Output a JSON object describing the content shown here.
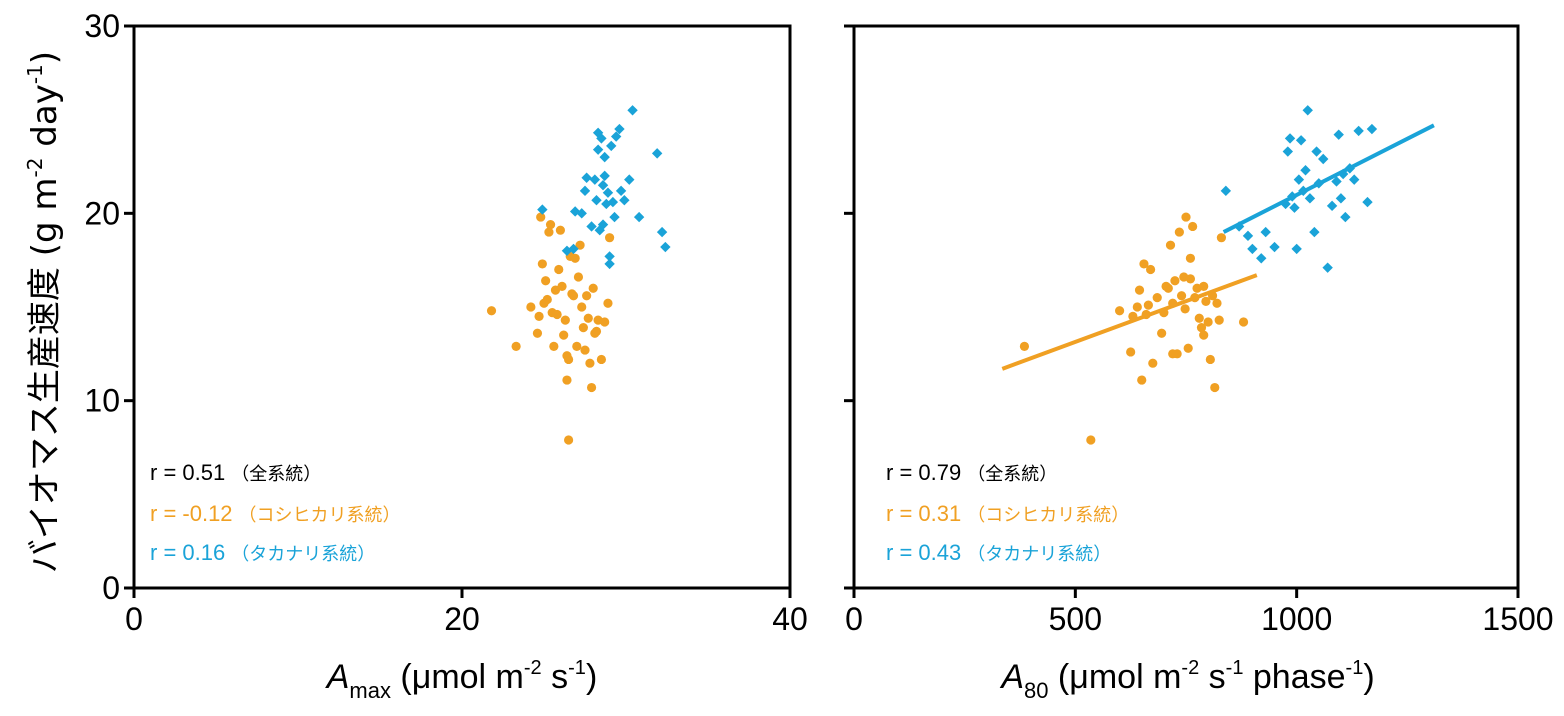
{
  "ylabel": {
    "main": "バイオマス生産速度 (g m",
    "sup1": "-2",
    "mid": " day",
    "sup2": "-1",
    "end": ")"
  },
  "colors": {
    "koshihikari": "#f0a023",
    "takanari": "#1aa3d8",
    "all": "#000000"
  },
  "chart_data": [
    {
      "type": "scatter",
      "xlabel": {
        "italic": "A",
        "sub": "max",
        "rest": " (μmol m",
        "sup1": "-2",
        "mid": " s",
        "sup2": "-1",
        "end": ")"
      },
      "xlim": [
        0,
        40
      ],
      "ylim": [
        0,
        30
      ],
      "xticks": [
        0,
        20,
        40
      ],
      "yticks": [
        0,
        10,
        20,
        30
      ],
      "annotations": [
        {
          "r": "r =  0.51",
          "label": "（全系統）",
          "color_key": "all"
        },
        {
          "r": "r = -0.12",
          "label": "（コシヒカリ系統）",
          "color_key": "koshihikari"
        },
        {
          "r": "r =  0.16",
          "label": "（タカナリ系統）",
          "color_key": "takanari"
        }
      ],
      "series": [
        {
          "color_key": "koshihikari",
          "marker": "circle",
          "points": [
            [
              21.8,
              14.8
            ],
            [
              23.3,
              12.9
            ],
            [
              24.2,
              15.0
            ],
            [
              24.6,
              13.6
            ],
            [
              24.7,
              14.5
            ],
            [
              24.8,
              19.8
            ],
            [
              24.9,
              17.3
            ],
            [
              25.0,
              15.2
            ],
            [
              25.1,
              16.4
            ],
            [
              25.2,
              15.4
            ],
            [
              25.3,
              19.0
            ],
            [
              25.4,
              19.4
            ],
            [
              25.5,
              14.7
            ],
            [
              25.6,
              12.9
            ],
            [
              25.7,
              15.9
            ],
            [
              25.8,
              14.6
            ],
            [
              25.9,
              17.0
            ],
            [
              26.0,
              19.1
            ],
            [
              26.1,
              16.1
            ],
            [
              26.2,
              13.5
            ],
            [
              26.3,
              14.3
            ],
            [
              26.4,
              12.4
            ],
            [
              26.4,
              11.1
            ],
            [
              26.5,
              12.2
            ],
            [
              26.5,
              7.9
            ],
            [
              26.6,
              17.7
            ],
            [
              26.7,
              15.7
            ],
            [
              26.8,
              15.6
            ],
            [
              26.9,
              17.6
            ],
            [
              27.0,
              12.9
            ],
            [
              27.1,
              16.6
            ],
            [
              27.2,
              18.3
            ],
            [
              27.3,
              15.0
            ],
            [
              27.4,
              13.9
            ],
            [
              27.5,
              12.7
            ],
            [
              27.6,
              15.6
            ],
            [
              27.7,
              14.4
            ],
            [
              27.8,
              12.0
            ],
            [
              27.9,
              10.7
            ],
            [
              28.0,
              16.0
            ],
            [
              28.1,
              13.6
            ],
            [
              28.2,
              13.7
            ],
            [
              28.3,
              14.3
            ],
            [
              28.5,
              12.2
            ],
            [
              28.7,
              14.2
            ],
            [
              28.9,
              15.2
            ],
            [
              29.0,
              18.7
            ]
          ]
        },
        {
          "color_key": "takanari",
          "marker": "diamond",
          "points": [
            [
              24.9,
              20.2
            ],
            [
              26.4,
              18.0
            ],
            [
              26.8,
              18.1
            ],
            [
              26.9,
              20.1
            ],
            [
              27.3,
              20.0
            ],
            [
              27.5,
              21.2
            ],
            [
              27.6,
              21.9
            ],
            [
              27.9,
              19.3
            ],
            [
              28.1,
              21.8
            ],
            [
              28.2,
              20.7
            ],
            [
              28.3,
              23.4
            ],
            [
              28.3,
              24.3
            ],
            [
              28.4,
              19.1
            ],
            [
              28.5,
              24.0
            ],
            [
              28.6,
              19.4
            ],
            [
              28.6,
              21.5
            ],
            [
              28.7,
              23.0
            ],
            [
              28.7,
              22.0
            ],
            [
              28.8,
              20.5
            ],
            [
              28.9,
              21.1
            ],
            [
              29.0,
              17.7
            ],
            [
              29.0,
              17.3
            ],
            [
              29.1,
              23.6
            ],
            [
              29.2,
              20.6
            ],
            [
              29.3,
              19.8
            ],
            [
              29.4,
              24.1
            ],
            [
              29.6,
              24.5
            ],
            [
              29.7,
              21.2
            ],
            [
              29.9,
              20.7
            ],
            [
              30.2,
              21.8
            ],
            [
              30.4,
              25.5
            ],
            [
              30.8,
              19.8
            ],
            [
              31.9,
              23.2
            ],
            [
              32.2,
              19.0
            ],
            [
              32.4,
              18.2
            ]
          ]
        }
      ]
    },
    {
      "type": "scatter",
      "xlabel": {
        "italic": "A",
        "sub": "80",
        "rest": " (μmol m",
        "sup1": "-2",
        "mid": " s",
        "sup2": "-1",
        "mid2": " phase",
        "sup3": "-1",
        "end": ")"
      },
      "xlim": [
        0,
        1500
      ],
      "ylim": [
        0,
        30
      ],
      "xticks": [
        0,
        500,
        1000,
        1500
      ],
      "yticks": [
        0,
        10,
        20,
        30
      ],
      "annotations": [
        {
          "r": "r =  0.79",
          "label": "（全系統）",
          "color_key": "all"
        },
        {
          "r": "r =  0.31",
          "label": "（コシヒカリ系統）",
          "color_key": "koshihikari"
        },
        {
          "r": "r =  0.43",
          "label": "（タカナリ系統）",
          "color_key": "takanari"
        }
      ],
      "fits": [
        {
          "color_key": "koshihikari",
          "x": [
            335,
            910
          ],
          "y": [
            11.7,
            16.7
          ]
        },
        {
          "color_key": "takanari",
          "x": [
            835,
            1310
          ],
          "y": [
            19.0,
            24.7
          ]
        }
      ],
      "series": [
        {
          "color_key": "koshihikari",
          "marker": "circle",
          "points": [
            [
              385,
              12.9
            ],
            [
              535,
              7.9
            ],
            [
              600,
              14.8
            ],
            [
              625,
              12.6
            ],
            [
              630,
              14.5
            ],
            [
              640,
              15.0
            ],
            [
              645,
              15.9
            ],
            [
              650,
              11.1
            ],
            [
              655,
              17.3
            ],
            [
              660,
              14.6
            ],
            [
              665,
              15.1
            ],
            [
              670,
              17.0
            ],
            [
              675,
              12.0
            ],
            [
              685,
              15.5
            ],
            [
              695,
              13.6
            ],
            [
              700,
              14.7
            ],
            [
              705,
              16.1
            ],
            [
              710,
              16.0
            ],
            [
              715,
              18.3
            ],
            [
              720,
              15.2
            ],
            [
              725,
              16.4
            ],
            [
              730,
              12.5
            ],
            [
              735,
              19.0
            ],
            [
              740,
              15.6
            ],
            [
              745,
              16.6
            ],
            [
              748,
              14.9
            ],
            [
              750,
              19.8
            ],
            [
              755,
              12.8
            ],
            [
              760,
              17.6
            ],
            [
              765,
              19.3
            ],
            [
              770,
              15.5
            ],
            [
              775,
              16.0
            ],
            [
              780,
              14.4
            ],
            [
              785,
              13.9
            ],
            [
              790,
              13.5
            ],
            [
              795,
              15.3
            ],
            [
              800,
              14.2
            ],
            [
              805,
              12.2
            ],
            [
              810,
              15.6
            ],
            [
              815,
              10.7
            ],
            [
              820,
              15.2
            ],
            [
              825,
              14.3
            ],
            [
              830,
              18.7
            ],
            [
              880,
              14.2
            ],
            [
              790,
              16.1
            ],
            [
              760,
              16.5
            ],
            [
              720,
              12.5
            ]
          ]
        },
        {
          "color_key": "takanari",
          "marker": "diamond",
          "points": [
            [
              840,
              21.2
            ],
            [
              870,
              19.3
            ],
            [
              890,
              18.8
            ],
            [
              900,
              18.1
            ],
            [
              920,
              17.6
            ],
            [
              930,
              19.0
            ],
            [
              950,
              18.2
            ],
            [
              975,
              20.5
            ],
            [
              980,
              23.3
            ],
            [
              985,
              24.0
            ],
            [
              990,
              20.9
            ],
            [
              995,
              20.3
            ],
            [
              1000,
              18.1
            ],
            [
              1005,
              21.8
            ],
            [
              1010,
              23.9
            ],
            [
              1015,
              21.2
            ],
            [
              1020,
              22.3
            ],
            [
              1025,
              25.5
            ],
            [
              1030,
              20.8
            ],
            [
              1040,
              19.0
            ],
            [
              1045,
              23.3
            ],
            [
              1050,
              21.6
            ],
            [
              1060,
              22.9
            ],
            [
              1070,
              17.1
            ],
            [
              1080,
              20.4
            ],
            [
              1090,
              21.7
            ],
            [
              1095,
              24.2
            ],
            [
              1100,
              20.8
            ],
            [
              1105,
              22.1
            ],
            [
              1110,
              19.8
            ],
            [
              1120,
              22.4
            ],
            [
              1130,
              21.8
            ],
            [
              1140,
              24.4
            ],
            [
              1160,
              20.6
            ],
            [
              1170,
              24.5
            ]
          ]
        }
      ]
    }
  ]
}
